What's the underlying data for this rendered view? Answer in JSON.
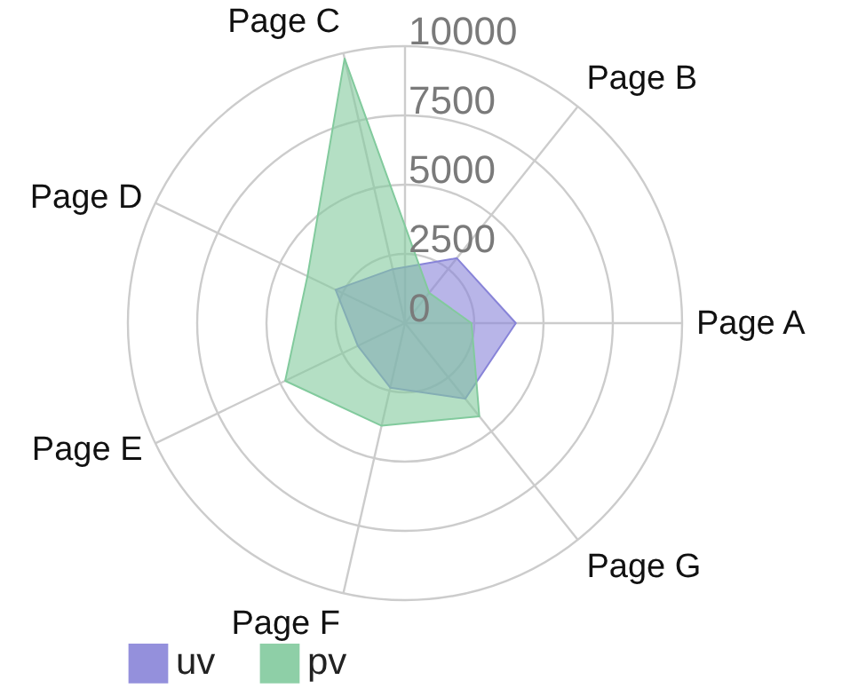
{
  "chart_data": {
    "type": "radar",
    "categories": [
      "Page C",
      "Page B",
      "Page A",
      "Page G",
      "Page F",
      "Page E",
      "Page D"
    ],
    "series": [
      {
        "name": "uv",
        "color": "#8884d8",
        "values": [
          2000,
          3000,
          4000,
          3490,
          2390,
          1890,
          2780
        ]
      },
      {
        "name": "pv",
        "color": "#82ca9d",
        "values": [
          9800,
          1398,
          2400,
          4300,
          3800,
          4800,
          3908
        ]
      }
    ],
    "ylim": [
      0,
      10000
    ],
    "yticks": [
      0,
      2500,
      5000,
      7500,
      10000
    ],
    "grid": true,
    "legend": "bottom"
  }
}
